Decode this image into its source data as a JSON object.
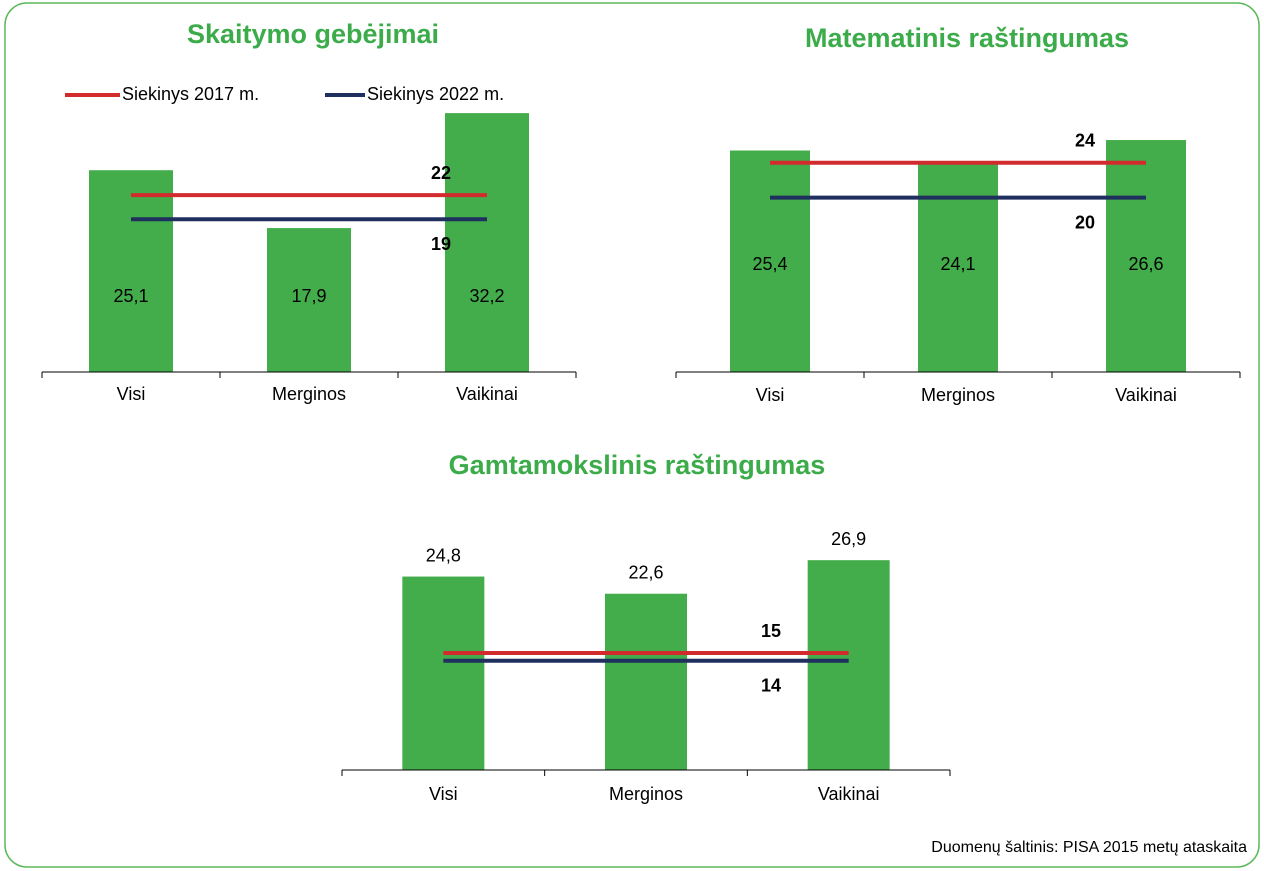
{
  "chart_data": [
    {
      "type": "bar",
      "title": "Skaitymo gebėjimai",
      "categories": [
        "Visi",
        "Merginos",
        "Vaikinai"
      ],
      "values": [
        25.1,
        17.9,
        32.2
      ],
      "value_labels": [
        "25,1",
        "17,9",
        "32,2"
      ],
      "color": "#43ad4b",
      "targets": [
        22,
        19
      ]
    },
    {
      "type": "bar",
      "title": "Matematinis raštingumas",
      "categories": [
        "Visi",
        "Merginos",
        "Vaikinai"
      ],
      "values": [
        25.4,
        24.1,
        26.6
      ],
      "value_labels": [
        "25,4",
        "24,1",
        "26,6"
      ],
      "color": "#43ad4b",
      "targets": [
        24,
        20
      ]
    },
    {
      "type": "bar",
      "title": "Gamtamokslinis raštingumas",
      "categories": [
        "Visi",
        "Merginos",
        "Vaikinai"
      ],
      "values": [
        24.8,
        22.6,
        26.9
      ],
      "value_labels": [
        "24,8",
        "22,6",
        "26,9"
      ],
      "color": "#43ad4b",
      "targets": [
        15,
        14
      ]
    }
  ],
  "legend": [
    {
      "name": "Siekinys 2017 m.",
      "color": "#d12b2e"
    },
    {
      "name": "Siekinys 2022 m.",
      "color": "#1f2f5e"
    }
  ],
  "source": "Duomenų šaltinis: PISA 2015 metų ataskaita"
}
